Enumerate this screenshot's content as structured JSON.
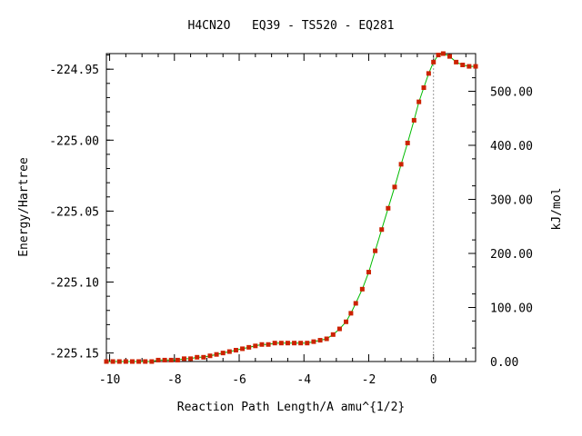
{
  "chart_data": {
    "type": "line",
    "title": "H4CN2O   EQ39 - TS520 - EQ281",
    "xlabel": "Reaction Path Length/A amu^{1/2}",
    "ylabel": "Energy/Hartree",
    "y2label": "kJ/mol",
    "xlim": [
      -10.1,
      1.3
    ],
    "ylim": [
      -225.156,
      -224.939
    ],
    "y2lim": [
      0.0,
      569.7
    ],
    "x_ticks": [
      -10,
      -8,
      -6,
      -4,
      -2,
      0
    ],
    "x_tick_labels": [
      "-10",
      "-8",
      "-6",
      "-4",
      "-2",
      "0"
    ],
    "y_ticks": [
      -224.95,
      -225.0,
      -225.05,
      -225.1,
      -225.15
    ],
    "y_tick_labels": [
      "-224.95",
      "-225.00",
      "-225.05",
      "-225.10",
      "-225.15"
    ],
    "y2_ticks": [
      0,
      100,
      200,
      300,
      400,
      500
    ],
    "y2_tick_labels": [
      "0.00",
      "100.00",
      "200.00",
      "300.00",
      "400.00",
      "500.00"
    ],
    "ts_marker_x": 0.0,
    "grid": false,
    "line_color": "#00bb00",
    "marker_color": "#cc2200",
    "series": [
      {
        "x": [
          -10.1,
          -9.9,
          -9.7,
          -9.5,
          -9.3,
          -9.1,
          -8.9,
          -8.7,
          -8.5,
          -8.3,
          -8.1,
          -7.9,
          -7.7,
          -7.5,
          -7.3,
          -7.1,
          -6.9,
          -6.7,
          -6.5,
          -6.3,
          -6.1,
          -5.9,
          -5.7,
          -5.5,
          -5.3,
          -5.1,
          -4.9,
          -4.7,
          -4.5,
          -4.3,
          -4.1,
          -3.9,
          -3.7,
          -3.5,
          -3.3,
          -3.1,
          -2.9,
          -2.7,
          -2.55,
          -2.4,
          -2.2,
          -2.0,
          -1.8,
          -1.6,
          -1.4,
          -1.2,
          -1.0,
          -0.8,
          -0.6,
          -0.45,
          -0.3,
          -0.15,
          0.0,
          0.15,
          0.3,
          0.5,
          0.7,
          0.9,
          1.1,
          1.3
        ],
        "y": [
          -225.156,
          -225.156,
          -225.156,
          -225.156,
          -225.156,
          -225.156,
          -225.156,
          -225.156,
          -225.155,
          -225.155,
          -225.155,
          -225.155,
          -225.154,
          -225.154,
          -225.153,
          -225.153,
          -225.152,
          -225.151,
          -225.15,
          -225.149,
          -225.148,
          -225.147,
          -225.146,
          -225.145,
          -225.144,
          -225.144,
          -225.143,
          -225.143,
          -225.143,
          -225.143,
          -225.143,
          -225.143,
          -225.142,
          -225.141,
          -225.14,
          -225.137,
          -225.133,
          -225.128,
          -225.122,
          -225.115,
          -225.105,
          -225.093,
          -225.078,
          -225.063,
          -225.048,
          -225.033,
          -225.017,
          -225.002,
          -224.986,
          -224.973,
          -224.963,
          -224.953,
          -224.945,
          -224.94,
          -224.939,
          -224.941,
          -224.945,
          -224.947,
          -224.948,
          -224.948
        ]
      }
    ]
  }
}
